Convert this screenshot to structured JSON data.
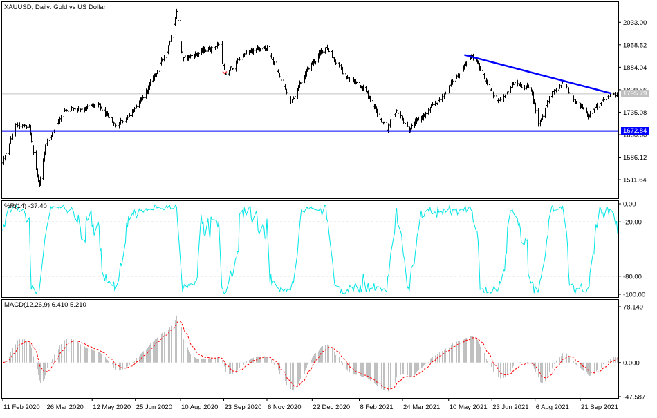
{
  "chart_data": [
    {
      "type": "candlestick",
      "title": "XAUUSD, Daily:  Gold vs US Dollar",
      "ylim": [
        1450,
        2100
      ],
      "ticks": [
        2033.0,
        1958.52,
        1884.04,
        1809.56,
        1735.08,
        1660.6,
        1586.12,
        1511.64
      ],
      "tick_labels": [
        "2033.00",
        "1958.52",
        "1884.04",
        "1809.56",
        "1735.08",
        "1660.60",
        "1586.12",
        "1511.64"
      ],
      "current_price": 1795.79,
      "current_price_label": "1795.79",
      "support_level": 1672.84,
      "support_label": "1672.84",
      "trendline": {
        "from": [
          "2021-05-26",
          1925
        ],
        "to": [
          "2021-10-22",
          1798
        ]
      },
      "anchor_points": [
        [
          "2020-02-11",
          1565
        ],
        [
          "2020-02-24",
          1690
        ],
        [
          "2020-03-09",
          1685
        ],
        [
          "2020-03-19",
          1485
        ],
        [
          "2020-03-26",
          1630
        ],
        [
          "2020-04-14",
          1745
        ],
        [
          "2020-05-18",
          1755
        ],
        [
          "2020-06-05",
          1685
        ],
        [
          "2020-07-01",
          1770
        ],
        [
          "2020-07-27",
          1940
        ],
        [
          "2020-08-06",
          2070
        ],
        [
          "2020-08-12",
          1910
        ],
        [
          "2020-09-18",
          1960
        ],
        [
          "2020-09-24",
          1855
        ],
        [
          "2020-10-12",
          1925
        ],
        [
          "2020-11-06",
          1950
        ],
        [
          "2020-11-30",
          1765
        ],
        [
          "2020-12-18",
          1880
        ],
        [
          "2021-01-05",
          1955
        ],
        [
          "2021-01-25",
          1850
        ],
        [
          "2021-02-12",
          1820
        ],
        [
          "2021-03-08",
          1680
        ],
        [
          "2021-03-18",
          1745
        ],
        [
          "2021-03-31",
          1680
        ],
        [
          "2021-04-29",
          1770
        ],
        [
          "2021-06-01",
          1915
        ],
        [
          "2021-06-08",
          1895
        ],
        [
          "2021-06-28",
          1765
        ],
        [
          "2021-07-15",
          1830
        ],
        [
          "2021-08-02",
          1815
        ],
        [
          "2021-08-09",
          1690
        ],
        [
          "2021-08-20",
          1785
        ],
        [
          "2021-09-03",
          1830
        ],
        [
          "2021-09-29",
          1725
        ],
        [
          "2021-10-12",
          1765
        ],
        [
          "2021-10-22",
          1798
        ],
        [
          "2021-10-29",
          1795
        ]
      ]
    },
    {
      "type": "line",
      "title": "%R(14) -37.40",
      "ylim": [
        -100,
        0
      ],
      "ticks": [
        0,
        -20,
        -80,
        -100
      ],
      "tick_labels": [
        "0.00",
        "-20.00",
        "-80.00",
        "-100.00"
      ],
      "levels": [
        -20,
        -80
      ],
      "color": "#00e5e5"
    },
    {
      "type": "bar",
      "title": "MACD(12,26,9) 6.410 5.210",
      "ylim": [
        -47.587,
        78.149
      ],
      "ticks": [
        78.149,
        0,
        -47.587
      ],
      "tick_labels": [
        "78.149",
        "0.000",
        "-47.587"
      ],
      "series": [
        {
          "name": "MACD"
        },
        {
          "name": "Signal"
        }
      ]
    }
  ],
  "x_axis": {
    "labels": [
      {
        "date": "2020-02-11",
        "text": "11 Feb 2020"
      },
      {
        "date": "2020-03-26",
        "text": "26 Mar 2020"
      },
      {
        "date": "2020-05-12",
        "text": "12 May 2020"
      },
      {
        "date": "2020-06-25",
        "text": "25 Jun 2020"
      },
      {
        "date": "2020-08-10",
        "text": "10 Aug 2020"
      },
      {
        "date": "2020-09-23",
        "text": "23 Sep 2020"
      },
      {
        "date": "2020-11-06",
        "text": "6 Nov 2020"
      },
      {
        "date": "2020-12-22",
        "text": "22 Dec 2020"
      },
      {
        "date": "2021-02-08",
        "text": "8 Feb 2021"
      },
      {
        "date": "2021-03-24",
        "text": "24 Mar 2021"
      },
      {
        "date": "2021-05-10",
        "text": "10 May 2021"
      },
      {
        "date": "2021-06-23",
        "text": "23 Jun 2021"
      },
      {
        "date": "2021-08-06",
        "text": "6 Aug 2021"
      },
      {
        "date": "2021-09-21",
        "text": "21 Sep 2021"
      }
    ]
  },
  "colors": {
    "candle": "#000000",
    "support_line": "#0000ff",
    "trendline": "#0000ff",
    "current_price_line": "#c0c0c0",
    "wpr_line": "#00e5e5",
    "macd_histogram": "#c0c0c0",
    "macd_signal": "#ff0000",
    "level_line": "#c0c0c0"
  }
}
